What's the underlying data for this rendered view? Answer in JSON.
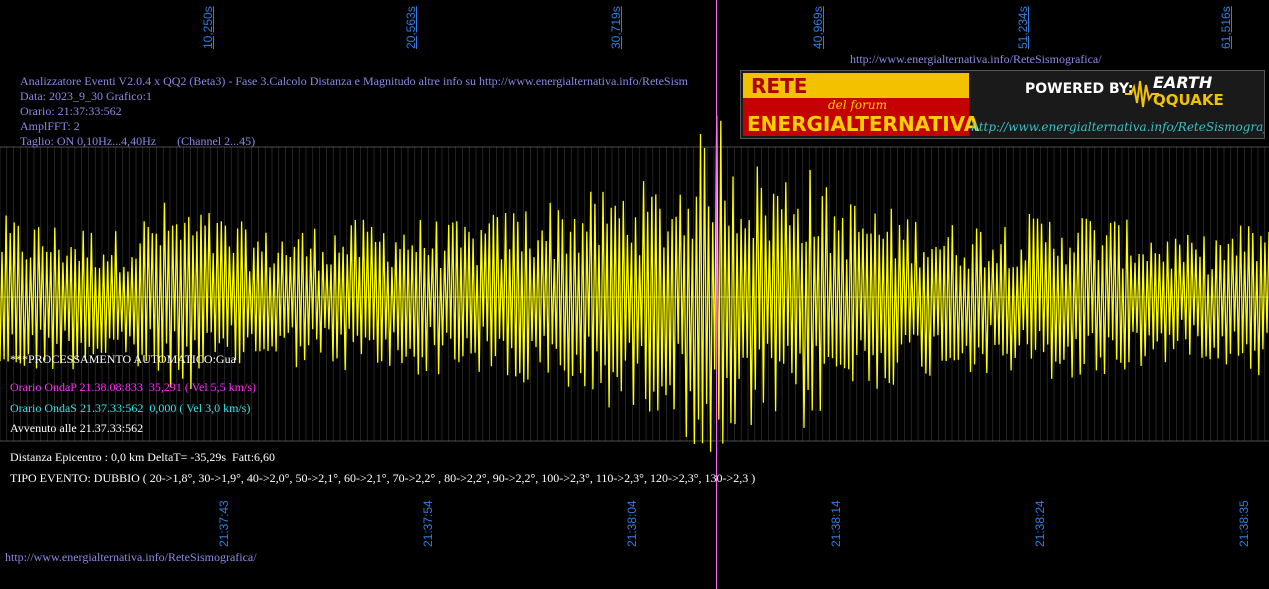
{
  "info": {
    "line1": "Analizzatore Eventi V2.0.4 x QQ2 (Beta3) - Fase 3.Calcolo Distanza e Magnitudo altre info su http://www.energialternativa.info/ReteSism",
    "line2": "Data: 2023_9_30 Grafico:1",
    "line3": "Orario: 21:37:33:562",
    "line4": "AmplFFT: 2",
    "line5": "Taglio: ON 0,10Hz...4,40Hz       (Channel 2...45)"
  },
  "url_top": "http://www.energialternativa.info/ReteSismografica/",
  "url_bottom": "http://www.energialternativa.info/ReteSismografica/",
  "processing": {
    "auto": "***PROCESSAMENTO AUTOMATICO:Gua",
    "onda_p": "Orario OndaP 21.38.08:833  35,291 ( Vel 5,5 km/s)",
    "onda_s": "Orario OndaS 21.37.33:562  0,000 ( Vel 3,0 km/s)",
    "avvenuto": "Avvenuto alle 21.37.33:562",
    "distanza": "Distanza Epicentro : 0,0 km DeltaT= -35,29s  Fatt:6,60",
    "tipo": "TIPO EVENTO: DUBBIO ( 20->1,8°, 30->1,9°, 40->2,0°, 50->2,1°, 60->2,1°, 70->2,2° , 80->2,2°, 90->2,2°, 100->2,3°, 110->2,3°, 120->2,3°, 130->2,3 )"
  },
  "banner": {
    "title": "RETE SISMOGRAFICA",
    "subtitle": "del forum",
    "name": "ENERGIALTERNATIVA",
    "powered": "POWERED BY:",
    "logo_top": "EARTH",
    "logo_bottom": "QQUAKE",
    "url": "http://www.energialternativa.info/ReteSismografica"
  },
  "colors": {
    "trace": "#ffff00",
    "grid": "#3a3a3a",
    "axis": "#ffffff",
    "marker": "#ff66ff",
    "tick": "#2f7ee0"
  },
  "chart_data": {
    "type": "line",
    "title": "",
    "xlabel": "",
    "ylabel": "",
    "top_ticks": [
      "10,250s",
      "20,563s",
      "30,719s",
      "40,969s",
      "51,234s",
      "61,516s"
    ],
    "bottom_ticks": [
      "21:37:43",
      "21:37:54",
      "21:38:04",
      "21:38:14",
      "21:38:24",
      "21:38:35"
    ],
    "x_range_s": [
      0,
      62.5
    ],
    "marker_time_s": 35.29,
    "grid": true,
    "series": [
      {
        "samples_per_s": 10,
        "envelope": [
          {
            "t": 0,
            "a": 0.55
          },
          {
            "t": 3,
            "a": 0.5
          },
          {
            "t": 6,
            "a": 0.45
          },
          {
            "t": 8,
            "a": 0.65
          },
          {
            "t": 10,
            "a": 0.6
          },
          {
            "t": 13,
            "a": 0.45
          },
          {
            "t": 16,
            "a": 0.5
          },
          {
            "t": 20,
            "a": 0.55
          },
          {
            "t": 23,
            "a": 0.5
          },
          {
            "t": 26,
            "a": 0.65
          },
          {
            "t": 29,
            "a": 0.7
          },
          {
            "t": 31,
            "a": 0.8
          },
          {
            "t": 33,
            "a": 0.75
          },
          {
            "t": 34.5,
            "a": 1.1
          },
          {
            "t": 35.3,
            "a": 1.35
          },
          {
            "t": 36.5,
            "a": 1.0
          },
          {
            "t": 38,
            "a": 0.85
          },
          {
            "t": 39.5,
            "a": 0.95
          },
          {
            "t": 41,
            "a": 0.7
          },
          {
            "t": 44,
            "a": 0.6
          },
          {
            "t": 47,
            "a": 0.5
          },
          {
            "t": 50,
            "a": 0.55
          },
          {
            "t": 53,
            "a": 0.6
          },
          {
            "t": 56,
            "a": 0.5
          },
          {
            "t": 59,
            "a": 0.4
          },
          {
            "t": 62.5,
            "a": 0.55
          }
        ]
      }
    ]
  }
}
